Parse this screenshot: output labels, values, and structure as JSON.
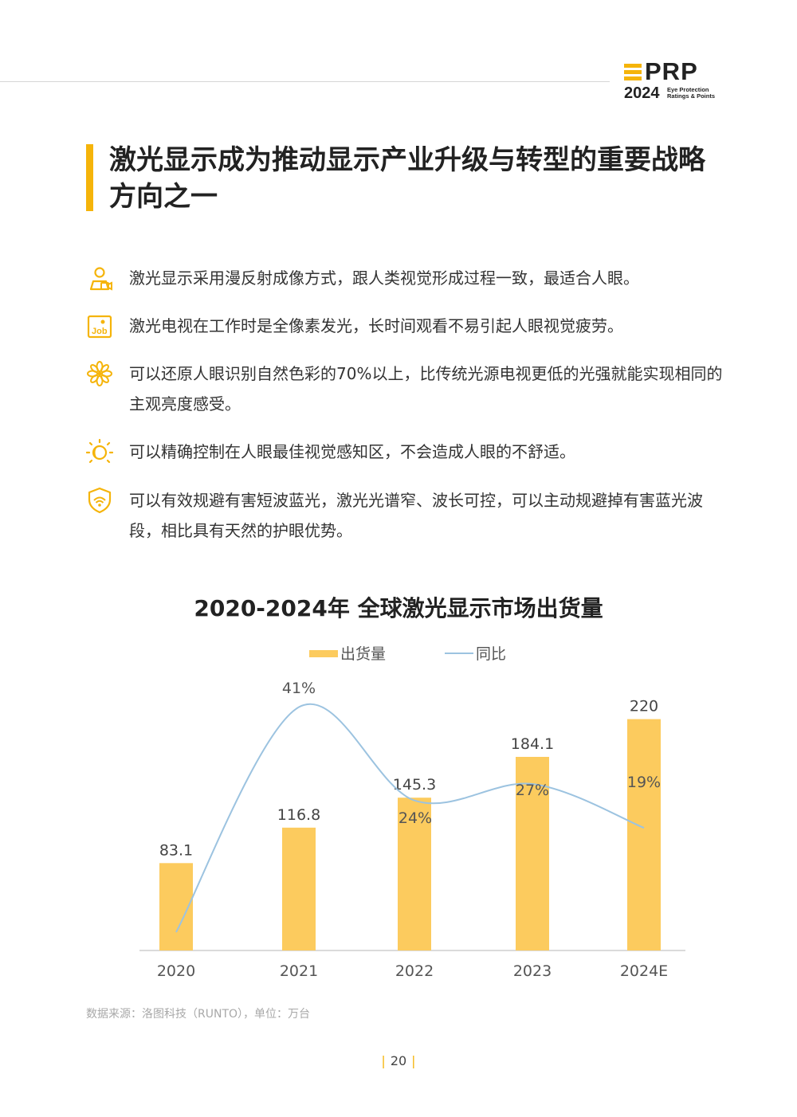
{
  "brand": {
    "logo_main": "PRP",
    "logo_year": "2024",
    "logo_tagline_1": "Eye Protection",
    "logo_tagline_2": "Ratings & Points",
    "accent_color": "#f5b40a"
  },
  "title": "激光显示成为推动显示产业升级与转型的重要战略方向之一",
  "bullets": [
    {
      "icon": "person-camera-icon",
      "text": "激光显示采用漫反射成像方式，跟人类视觉形成过程一致，最适合人眼。"
    },
    {
      "icon": "job-icon",
      "icon_label": "Job",
      "text": "激光电视在工作时是全像素发光，长时间观看不易引起人眼视觉疲劳。"
    },
    {
      "icon": "flower-icon",
      "text": "可以还原人眼识别自然色彩的70%以上，比传统光源电视更低的光强就能实现相同的主观亮度感受。"
    },
    {
      "icon": "sun-moon-icon",
      "text": "可以精确控制在人眼最佳视觉感知区，不会造成人眼的不舒适。"
    },
    {
      "icon": "shield-eye-icon",
      "text": "可以有效规避有害短波蓝光，激光光谱窄、波长可控，可以主动规避掉有害蓝光波段，相比具有天然的护眼优势。"
    }
  ],
  "chart_data": {
    "type": "bar",
    "title": "2020-2024年 全球激光显示市场出货量",
    "categories": [
      "2020",
      "2021",
      "2022",
      "2023",
      "2024E"
    ],
    "series": [
      {
        "name": "出货量",
        "values": [
          83.1,
          116.8,
          145.3,
          184.1,
          220
        ],
        "labels": [
          "83.1",
          "116.8",
          "145.3",
          "184.1",
          "220"
        ],
        "color": "#fccb5e"
      },
      {
        "name": "同比",
        "type": "line",
        "values": [
          null,
          41,
          24,
          27,
          19
        ],
        "labels": [
          "",
          "41%",
          "24%",
          "27%",
          "19%"
        ],
        "color": "#9cc3e0"
      }
    ],
    "ylim": [
      0,
      250
    ],
    "grid": false,
    "legend_position": "top-center"
  },
  "source": "数据来源：洛图科技（RUNTO），单位：万台",
  "page_number": "20"
}
